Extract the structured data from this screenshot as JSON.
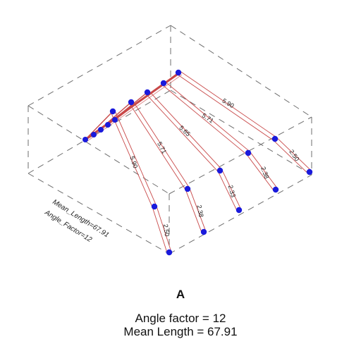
{
  "figure": {
    "panel_label": "A",
    "caption_line1": "Angle factor = 12",
    "caption_line2": "Mean Length = 67.91",
    "inner_label_length": "Mean_Length=67.91",
    "inner_label_angle": "Angle_Factor=12"
  },
  "colors": {
    "box_line": "#6e6e6e",
    "segment_line": "#c84848",
    "joint": "#1a1adc",
    "text": "#111111"
  },
  "segment_labels": {
    "seg_a_mid": "5.90",
    "seg_a_tip": "2.50",
    "seg_b_mid": "5.71",
    "seg_b_tip": "2.38",
    "seg_c_mid": "5.65",
    "seg_c_tip": "2.33",
    "seg_d_mid": "5.71",
    "seg_d_tip": "2.38",
    "seg_e_mid": "5.90",
    "seg_e_tip": "2.50"
  }
}
